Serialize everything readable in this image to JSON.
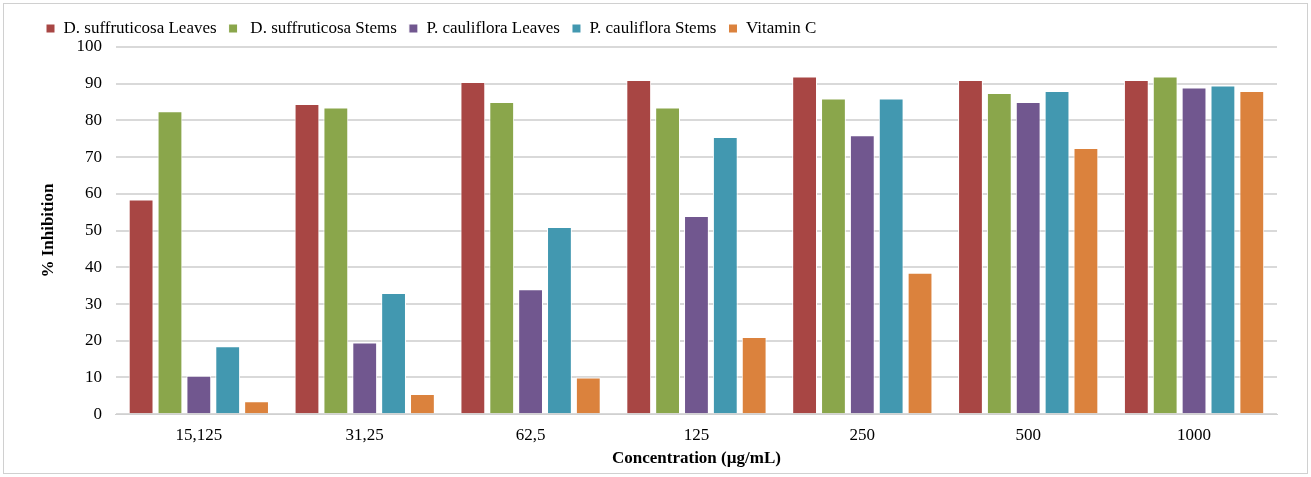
{
  "chart_data": {
    "type": "bar",
    "xlabel": "Concentration (µg/mL)",
    "ylabel": "% Inhibition",
    "categories": [
      "15,125",
      "31,25",
      "62,5",
      "125",
      "250",
      "500",
      "1000"
    ],
    "series": [
      {
        "name": "D. suffruticosa Leaves",
        "color": "#a84644",
        "values": [
          58.5,
          84.5,
          90.5,
          91,
          92,
          91,
          91
        ]
      },
      {
        "name": " D. suffruticosa Stems",
        "color": "#8aa64b",
        "values": [
          82.5,
          83.5,
          85,
          83.5,
          86,
          87.5,
          92
        ]
      },
      {
        "name": "P. cauliflora Leaves",
        "color": "#71578f",
        "values": [
          10.5,
          19.5,
          34,
          54,
          76,
          85,
          89
        ]
      },
      {
        "name": "P. cauliflora Stems",
        "color": "#4298b0",
        "values": [
          18.5,
          33,
          51,
          75.5,
          86,
          88,
          89.5
        ]
      },
      {
        "name": "Vitamin C",
        "color": "#db823d",
        "values": [
          3.5,
          5.5,
          10,
          21,
          38.5,
          72.5,
          88
        ]
      }
    ],
    "ylim": [
      0,
      100
    ],
    "yticks": [
      0,
      10,
      20,
      30,
      40,
      50,
      60,
      70,
      80,
      90,
      100
    ],
    "grid": "y",
    "legend": "top"
  }
}
